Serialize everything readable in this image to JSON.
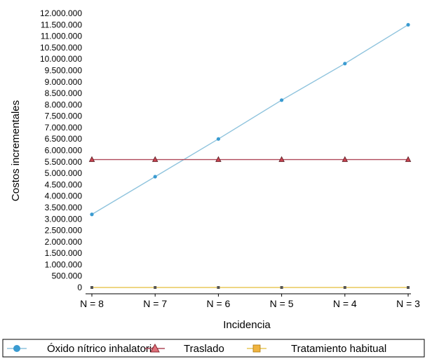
{
  "chart_data": {
    "type": "line",
    "categories": [
      "N = 8",
      "N = 7",
      "N = 6",
      "N = 5",
      "N = 4",
      "N = 3"
    ],
    "xlabel": "Incidencia",
    "ylabel": "Costos incrementales",
    "ylim": [
      0,
      12000000
    ],
    "ytick_step": 500000,
    "ytick_labels": [
      "0",
      "500.000",
      "1.000.000",
      "1.500.000",
      "2.000.000",
      "2.500.000",
      "3.000.000",
      "3.500.000",
      "4.000.000",
      "4.500.000",
      "5.000.000",
      "5.500.000",
      "6.000.000",
      "6.500.000",
      "7.000.000",
      "7.500.000",
      "8.000.000",
      "8.500.000",
      "9.000.000",
      "9.500.000",
      "10.000.000",
      "10.500.000",
      "11.000.000",
      "11.500.000",
      "12.000.000"
    ],
    "grid": false,
    "legend_position": "bottom",
    "series": [
      {
        "name": "Óxido nítrico inhalatorio",
        "values": [
          3200000,
          4850000,
          6500000,
          8200000,
          9800000,
          11500000
        ],
        "color": "#8ec3dd",
        "marker": "circle",
        "marker_color": "#3a9bd1"
      },
      {
        "name": "Traslado",
        "values": [
          5600000,
          5600000,
          5600000,
          5600000,
          5600000,
          5600000
        ],
        "color": "#b04a5a",
        "marker": "triangle",
        "marker_color": "#c8414e"
      },
      {
        "name": "Tratamiento habitual",
        "values": [
          0,
          0,
          0,
          0,
          0,
          0
        ],
        "color": "#e8c95a",
        "marker": "square",
        "marker_color": "#555555"
      }
    ]
  }
}
